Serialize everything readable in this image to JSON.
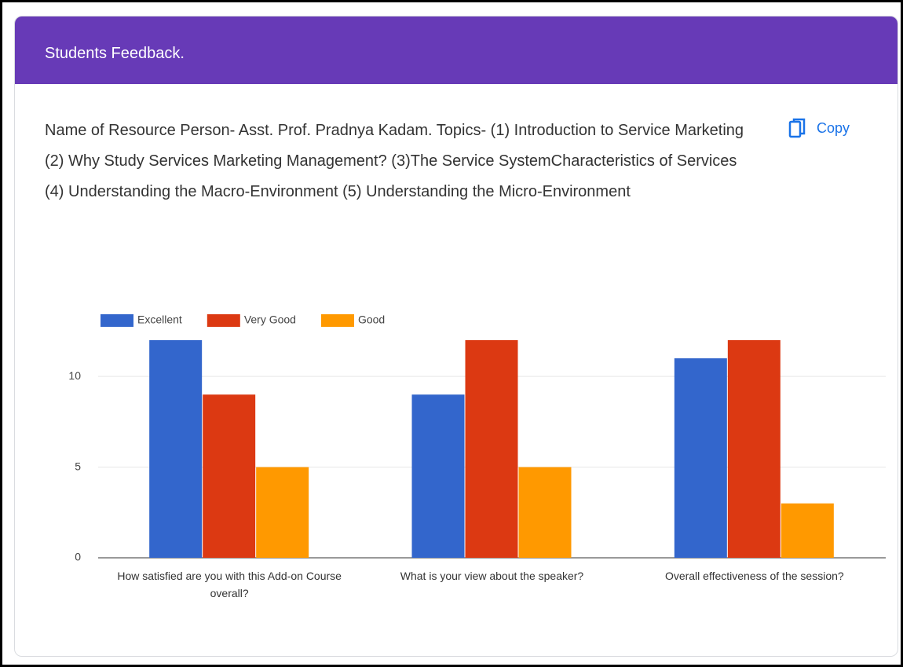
{
  "header": {
    "title": "Students Feedback."
  },
  "question": "Name of Resource Person- Asst. Prof. Pradnya Kadam. Topics- (1) Introduction to Service Marketing (2) Why Study Services Marketing Management? (3)The Service SystemCharacteristics of Services (4) Understanding the Macro-Environment (5) Understanding the Micro-Environment",
  "copy": "Copy",
  "chart_data": {
    "type": "bar",
    "categories": [
      "How satisfied are you with this Add-on Course overall?",
      "What is your view about the speaker?",
      "Overall effectiveness of the session?"
    ],
    "series": [
      {
        "name": "Excellent",
        "color": "#3366cc",
        "values": [
          12,
          9,
          11
        ]
      },
      {
        "name": "Very Good",
        "color": "#dc3912",
        "values": [
          9,
          12,
          12
        ]
      },
      {
        "name": "Good",
        "color": "#ff9900",
        "values": [
          5,
          5,
          3
        ]
      }
    ],
    "ylim": [
      0,
      12
    ],
    "yticks": [
      0,
      5,
      10
    ],
    "grid": true,
    "legend": "top"
  }
}
